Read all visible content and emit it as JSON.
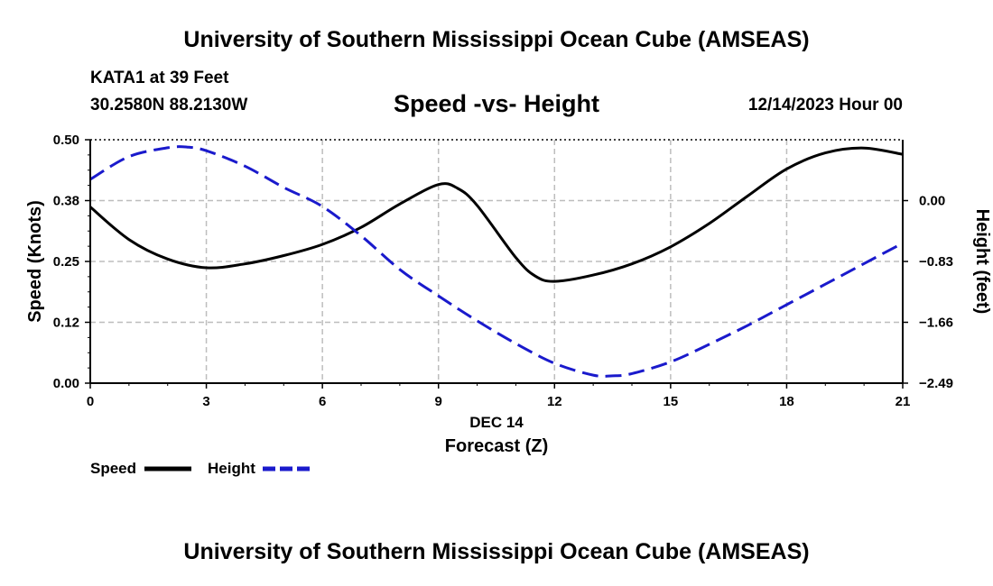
{
  "header": {
    "title": "University of Southern Mississippi Ocean Cube (AMSEAS)",
    "station": "KATA1 at 39 Feet",
    "coordinates": "30.2580N  88.2130W",
    "plot_title": "Speed -vs- Height",
    "datetime": "12/14/2023 Hour 00"
  },
  "footer": {
    "title": "University of Southern Mississippi Ocean Cube (AMSEAS)"
  },
  "colors": {
    "speed": "#000000",
    "height": "#1a1acc",
    "grid": "#bdbdbd"
  },
  "chart_data": {
    "type": "line",
    "xlabel": "Forecast (Z)",
    "date_label": "DEC 14",
    "ylabel_left": "Speed (Knots)",
    "ylabel_right": "Height (feet)",
    "xlim": [
      0,
      21
    ],
    "x_ticks": [
      0,
      3,
      6,
      9,
      12,
      15,
      18,
      21
    ],
    "ylim_left": [
      0,
      0.5
    ],
    "y_ticks_left": [
      "0.00",
      "0.12",
      "0.25",
      "0.38",
      "0.50"
    ],
    "ylim_right": [
      -2.49,
      0.83
    ],
    "y_ticks_right": [
      "0.00",
      "−0.83",
      "−1.66",
      "−2.49"
    ],
    "grid": true,
    "legend": [
      {
        "name": "Speed",
        "style": "solid"
      },
      {
        "name": "Height",
        "style": "dashed"
      }
    ],
    "series": [
      {
        "name": "Speed",
        "axis": "left",
        "style": "solid",
        "x": [
          0,
          1,
          2,
          3,
          4,
          5,
          6,
          7,
          8,
          9,
          9.5,
          10,
          11,
          11.5,
          12,
          13,
          14,
          15,
          16,
          17,
          18,
          19,
          20,
          21
        ],
        "values": [
          0.362,
          0.295,
          0.255,
          0.237,
          0.245,
          0.262,
          0.285,
          0.32,
          0.368,
          0.408,
          0.4,
          0.365,
          0.258,
          0.22,
          0.209,
          0.222,
          0.245,
          0.28,
          0.328,
          0.385,
          0.44,
          0.473,
          0.483,
          0.47
        ]
      },
      {
        "name": "Height",
        "axis": "right",
        "style": "dashed",
        "x": [
          0,
          1,
          2,
          2.5,
          3,
          4,
          5,
          6,
          7,
          8,
          9,
          10,
          11,
          12,
          13,
          13.5,
          14,
          15,
          16,
          17,
          18,
          19,
          20,
          21
        ],
        "values": [
          0.29,
          0.6,
          0.72,
          0.73,
          0.68,
          0.47,
          0.18,
          -0.08,
          -0.48,
          -0.94,
          -1.3,
          -1.64,
          -1.95,
          -2.22,
          -2.38,
          -2.39,
          -2.36,
          -2.2,
          -1.96,
          -1.7,
          -1.42,
          -1.14,
          -0.86,
          -0.58
        ]
      }
    ]
  }
}
